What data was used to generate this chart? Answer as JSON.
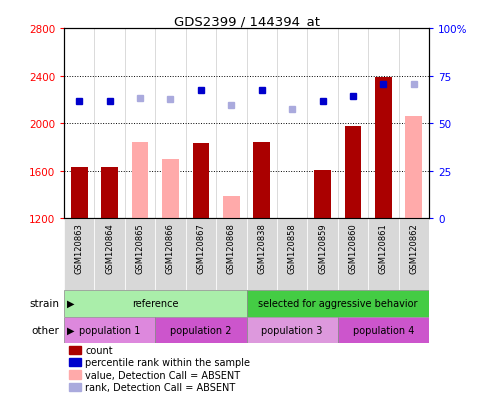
{
  "title": "GDS2399 / 144394_at",
  "samples": [
    "GSM120863",
    "GSM120864",
    "GSM120865",
    "GSM120866",
    "GSM120867",
    "GSM120868",
    "GSM120838",
    "GSM120858",
    "GSM120859",
    "GSM120860",
    "GSM120861",
    "GSM120862"
  ],
  "count_values": [
    1630,
    1635,
    null,
    null,
    1830,
    null,
    1845,
    null,
    1610,
    1975,
    2390,
    null
  ],
  "absent_bar_values": [
    null,
    null,
    1840,
    1700,
    null,
    1390,
    null,
    1195,
    null,
    null,
    null,
    2060
  ],
  "rank_values": [
    2185,
    2185,
    null,
    null,
    2275,
    null,
    2275,
    null,
    2185,
    2225,
    2330,
    null
  ],
  "absent_rank_values": [
    null,
    null,
    2215,
    2205,
    null,
    2155,
    null,
    2120,
    null,
    null,
    null,
    2330
  ],
  "count_color": "#aa0000",
  "absent_bar_color": "#ffaaaa",
  "rank_color": "#0000cc",
  "absent_rank_color": "#aaaadd",
  "ymin": 1200,
  "ymax": 2800,
  "yticks": [
    1200,
    1600,
    2000,
    2400,
    2800
  ],
  "right_yticks": [
    0,
    25,
    50,
    75,
    100
  ],
  "right_ylabels": [
    "0",
    "25",
    "50",
    "75",
    "100%"
  ],
  "grid_lines": [
    1600,
    2000,
    2400
  ],
  "strain_groups": [
    {
      "label": "reference",
      "start": 0,
      "end": 6,
      "color": "#aaeeaa"
    },
    {
      "label": "selected for aggressive behavior",
      "start": 6,
      "end": 12,
      "color": "#44cc44"
    }
  ],
  "other_groups": [
    {
      "label": "population 1",
      "start": 0,
      "end": 3,
      "color": "#dd88dd"
    },
    {
      "label": "population 2",
      "start": 3,
      "end": 6,
      "color": "#cc55cc"
    },
    {
      "label": "population 3",
      "start": 6,
      "end": 9,
      "color": "#dd99dd"
    },
    {
      "label": "population 4",
      "start": 9,
      "end": 12,
      "color": "#cc55cc"
    }
  ],
  "legend_items": [
    {
      "label": "count",
      "color": "#aa0000"
    },
    {
      "label": "percentile rank within the sample",
      "color": "#0000cc"
    },
    {
      "label": "value, Detection Call = ABSENT",
      "color": "#ffaaaa"
    },
    {
      "label": "rank, Detection Call = ABSENT",
      "color": "#aaaadd"
    }
  ],
  "bar_width": 0.55
}
